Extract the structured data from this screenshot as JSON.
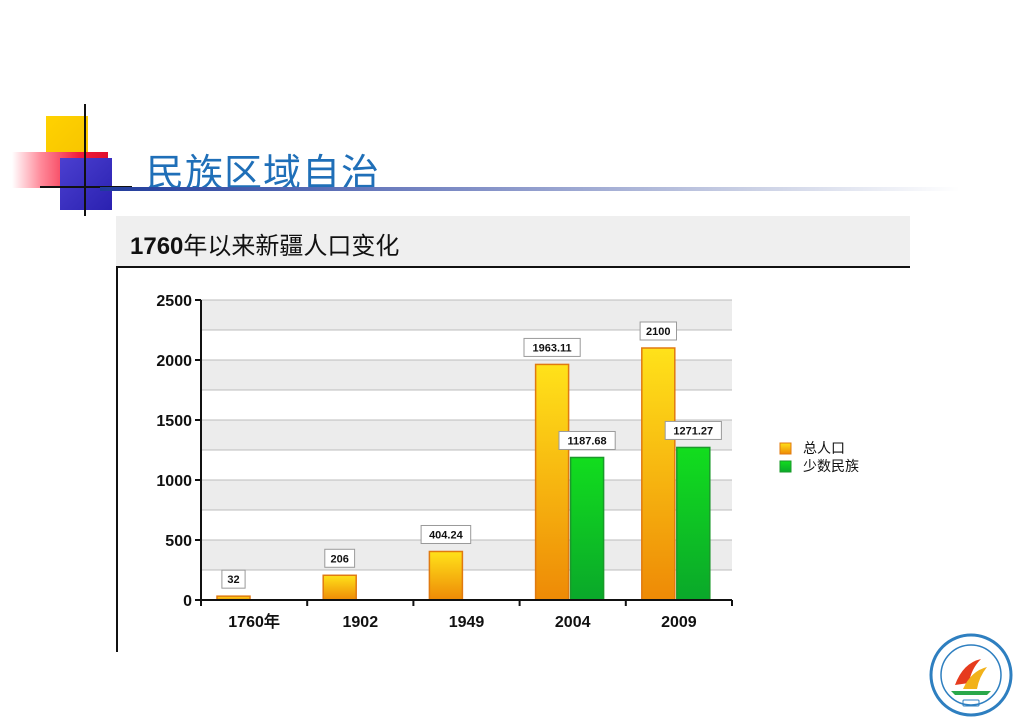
{
  "slide": {
    "title": "民族区域自治"
  },
  "chart_data": {
    "type": "bar",
    "title_bold": "1760",
    "title_rest": "年以来新疆人口变化",
    "categories": [
      "1760年",
      "1902",
      "1949",
      "2004",
      "2009"
    ],
    "series": [
      {
        "name": "总人口",
        "values": [
          32,
          206,
          404.24,
          1963.11,
          2100
        ],
        "color": "#f5b40a"
      },
      {
        "name": "少数民族",
        "values": [
          null,
          null,
          null,
          1187.68,
          1271.27
        ],
        "color": "#19c43a"
      }
    ],
    "data_labels": [
      [
        "32",
        "206",
        "404.24",
        "1963.11",
        "2100"
      ],
      [
        null,
        null,
        null,
        "1187.68",
        "1271.27"
      ]
    ],
    "yticks": [
      "0",
      "500",
      "1000",
      "1500",
      "2000",
      "2500"
    ],
    "ylim": [
      0,
      2500
    ],
    "grid": true,
    "legend_position": "right"
  },
  "colors": {
    "title_blue": "#1f6fb8",
    "header_bg": "#efefef"
  },
  "icons": [
    "school-emblem-icon"
  ]
}
